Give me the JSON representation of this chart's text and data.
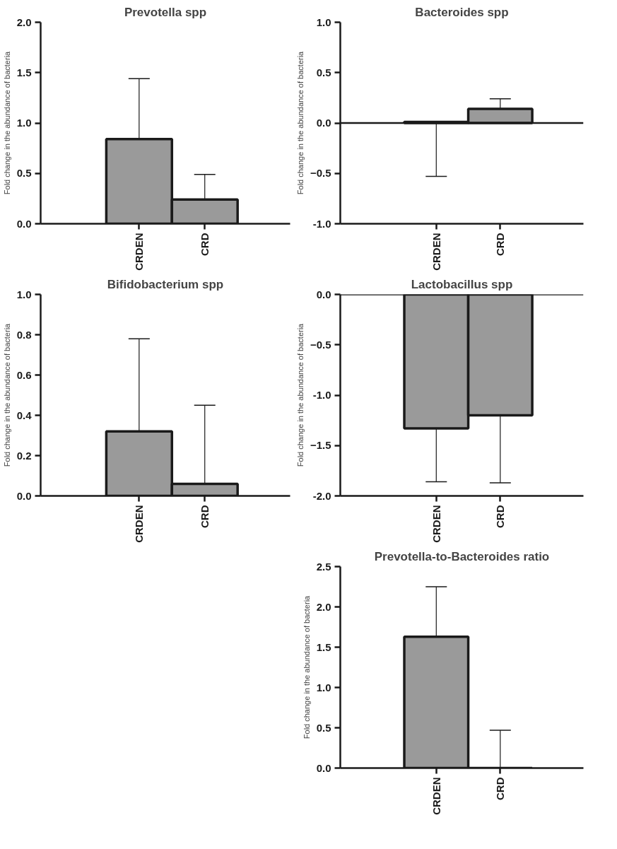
{
  "chart_data": [
    {
      "type": "bar",
      "title": "Prevotella spp",
      "ylabel": "Fold change in the abundance of bacteria",
      "categories": [
        "CRDEN",
        "CRD"
      ],
      "values": [
        0.84,
        0.24
      ],
      "errors": [
        [
          0.84,
          1.44
        ],
        [
          0.24,
          0.49
        ]
      ],
      "color": "#9a9a9a",
      "ylim": [
        0,
        2.0
      ],
      "yticks": [
        {
          "value": 0,
          "label": "0.0"
        },
        0.5,
        {
          "value": 1,
          "label": "1.0"
        },
        1.5,
        {
          "value": 2,
          "label": "2.0"
        }
      ],
      "grid": false
    },
    {
      "type": "bar",
      "title": "Bacteroides spp",
      "ylabel": "Fold change in the abundance of bacteria",
      "categories": [
        "CRDEN",
        "CRD"
      ],
      "values": [
        0.01,
        0.14
      ],
      "errors": [
        [
          -0.53,
          0.01
        ],
        [
          0.14,
          0.24
        ]
      ],
      "color": "#9a9a9a",
      "ylim": [
        -1.0,
        1.0
      ],
      "yticks": [
        {
          "value": -1,
          "label": "-1.0"
        },
        -0.5,
        {
          "value": 0,
          "label": "0.0"
        },
        0.5,
        {
          "value": 1,
          "label": "1.0"
        }
      ],
      "ref_lines": [
        {
          "axis": "y",
          "value": 0
        }
      ],
      "grid": false
    },
    {
      "type": "bar",
      "title": "Bifidobacterium spp",
      "ylabel": "Fold change in the abundance of bacteria",
      "categories": [
        "CRDEN",
        "CRD"
      ],
      "values": [
        0.32,
        0.06
      ],
      "errors": [
        [
          0.32,
          0.78
        ],
        [
          0.06,
          0.45
        ]
      ],
      "color": "#9a9a9a",
      "ylim": [
        0,
        1.0
      ],
      "yticks": [
        {
          "value": 0,
          "label": "0.0"
        },
        0.2,
        0.4,
        0.6,
        0.8,
        {
          "value": 1,
          "label": "1.0"
        }
      ],
      "grid": false
    },
    {
      "type": "bar",
      "title": "Lactobacillus spp",
      "ylabel": "Fold change in the abundance of bacteria",
      "categories": [
        "CRDEN",
        "CRD"
      ],
      "values": [
        -1.33,
        -1.2
      ],
      "errors": [
        [
          -1.86,
          -1.33
        ],
        [
          -1.87,
          -1.2
        ]
      ],
      "color": "#9a9a9a",
      "ylim": [
        -2.0,
        0
      ],
      "yticks": [
        {
          "value": -2,
          "label": "-2.0"
        },
        -1.5,
        {
          "value": -1,
          "label": "-1.0"
        },
        -0.5,
        {
          "value": 0,
          "label": "0.0"
        }
      ],
      "ref_lines": [
        {
          "axis": "y",
          "value": 0
        }
      ],
      "grid": false
    },
    {
      "type": "bar",
      "title": "Prevotella-to-Bacteroides ratio",
      "ylabel": "Fold change in the abundance of bacteria",
      "categories": [
        "CRDEN",
        "CRD"
      ],
      "values": [
        1.63,
        0
      ],
      "errors": [
        [
          1.63,
          2.25
        ],
        [
          0,
          0.47
        ]
      ],
      "color": "#9a9a9a",
      "ylim": [
        0,
        2.5
      ],
      "yticks": [
        {
          "value": 0,
          "label": "0.0"
        },
        0.5,
        {
          "value": 1,
          "label": "1.0"
        },
        1.5,
        {
          "value": 2,
          "label": "2.0"
        },
        2.5
      ],
      "grid": false
    }
  ]
}
